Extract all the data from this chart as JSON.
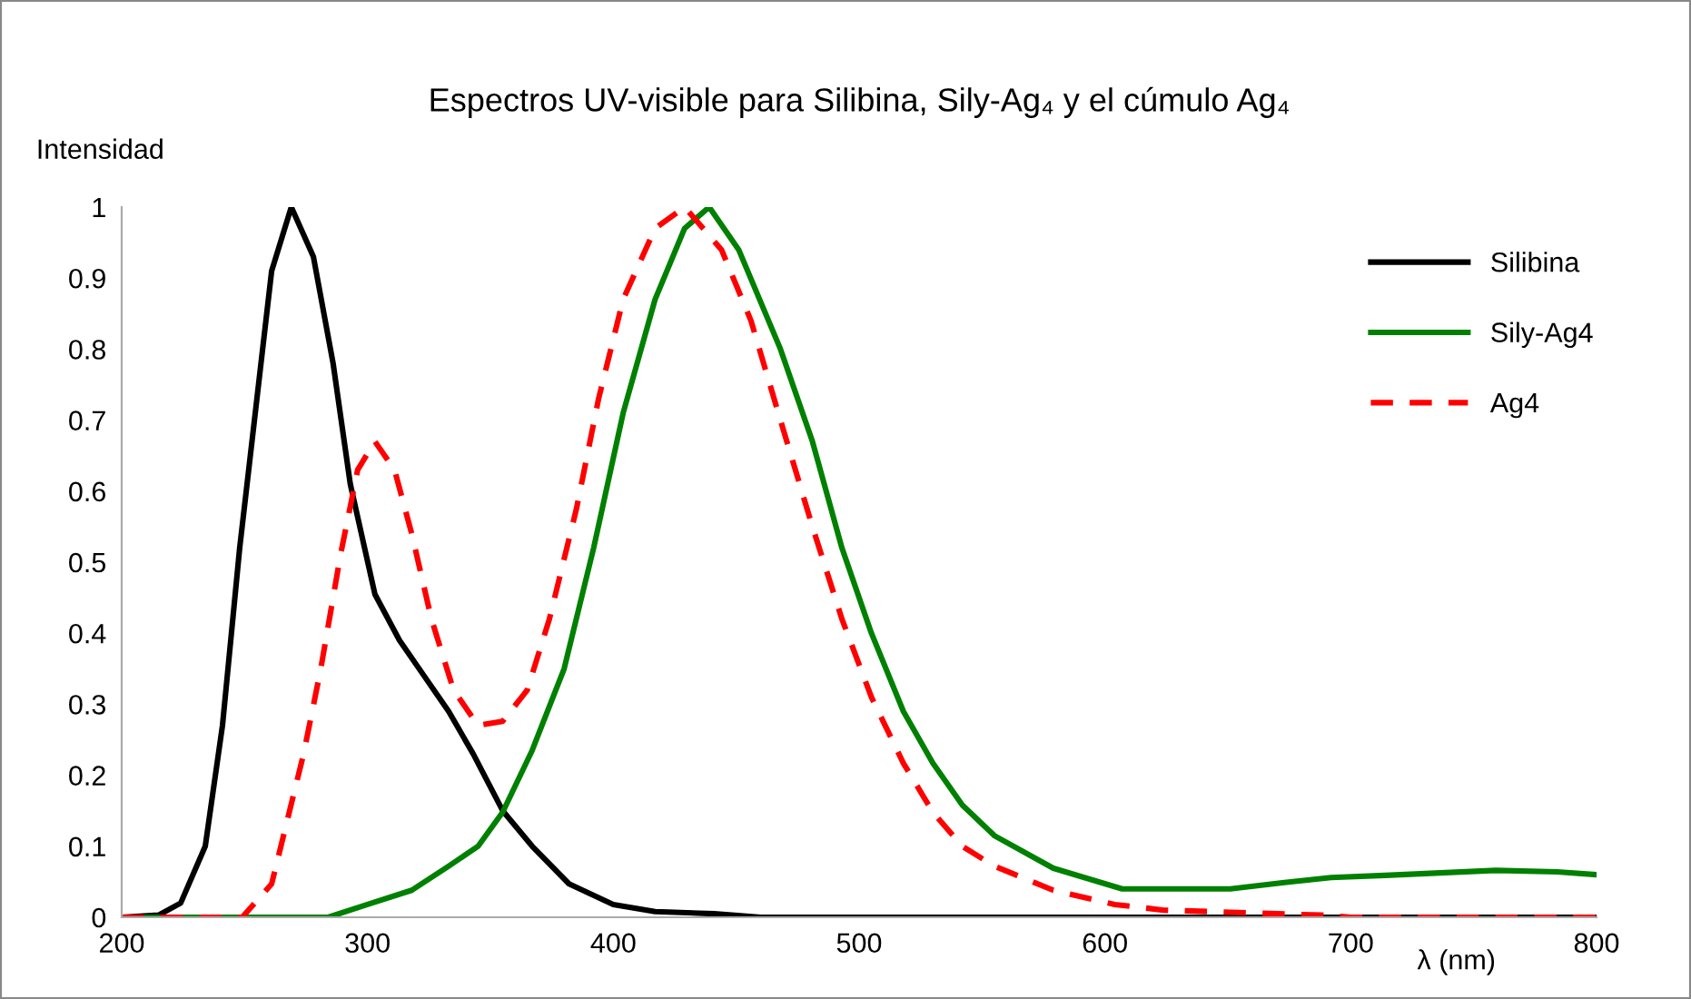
{
  "chart_data": {
    "type": "line",
    "title": "Espectros UV-visible para Silibina, Sily-Ag₄ y el cúmulo Ag₄",
    "xlabel": "λ (nm)",
    "ylabel": "Intensidad",
    "xlim": [
      200,
      800
    ],
    "xticks": [
      200,
      300,
      400,
      500,
      600,
      700,
      800
    ],
    "ylim": [
      0,
      1
    ],
    "yticks": [
      0,
      0.1,
      0.2,
      0.3,
      0.4,
      0.5,
      0.6,
      0.7,
      0.8,
      0.9,
      1
    ],
    "grid": false,
    "legend": "right",
    "marker": "none",
    "series": [
      {
        "name": "Silibina",
        "color": "#000000",
        "line_style": "solid",
        "x": [
          200,
          215,
          224,
          234,
          241,
          248,
          254,
          261,
          269,
          278,
          286,
          293,
          303,
          313,
          323,
          333,
          343,
          355,
          367,
          382,
          400,
          417,
          441,
          460,
          800
        ],
        "values": [
          0,
          0.003,
          0.02,
          0.1,
          0.27,
          0.52,
          0.7,
          0.91,
          1.0,
          0.93,
          0.78,
          0.61,
          0.455,
          0.39,
          0.34,
          0.29,
          0.23,
          0.15,
          0.1,
          0.047,
          0.018,
          0.008,
          0.005,
          0,
          0
        ]
      },
      {
        "name": "Sily-Ag4",
        "color": "#008000",
        "line_style": "solid",
        "x": [
          200,
          284,
          300,
          318,
          333,
          345,
          355,
          367,
          380,
          392,
          404,
          417,
          429,
          439,
          451,
          468,
          481,
          493,
          505,
          518,
          530,
          542,
          555,
          579,
          607,
          651,
          673,
          692,
          714,
          759,
          784,
          800
        ],
        "values": [
          0,
          0,
          0.018,
          0.038,
          0.072,
          0.1,
          0.148,
          0.235,
          0.35,
          0.52,
          0.71,
          0.87,
          0.97,
          1.0,
          0.94,
          0.8,
          0.67,
          0.52,
          0.4,
          0.29,
          0.217,
          0.158,
          0.115,
          0.069,
          0.04,
          0.04,
          0.049,
          0.056,
          0.059,
          0.066,
          0.064,
          0.06
        ]
      },
      {
        "name": "Ag4",
        "color": "#ff0000",
        "line_style": "dashed",
        "x": [
          200,
          249,
          261,
          274,
          281,
          289,
          296,
          303,
          311,
          318,
          326,
          335,
          345,
          355,
          365,
          374,
          385,
          394,
          404,
          417,
          429,
          444,
          456,
          468,
          481,
          493,
          505,
          518,
          530,
          542,
          555,
          579,
          604,
          624,
          688,
          700,
          800
        ],
        "values": [
          0,
          0,
          0.047,
          0.23,
          0.35,
          0.51,
          0.63,
          0.67,
          0.63,
          0.54,
          0.42,
          0.32,
          0.27,
          0.276,
          0.32,
          0.42,
          0.575,
          0.73,
          0.87,
          0.97,
          1.0,
          0.94,
          0.84,
          0.7,
          0.55,
          0.42,
          0.31,
          0.217,
          0.148,
          0.1,
          0.072,
          0.038,
          0.018,
          0.01,
          0.003,
          0,
          0
        ]
      }
    ]
  }
}
